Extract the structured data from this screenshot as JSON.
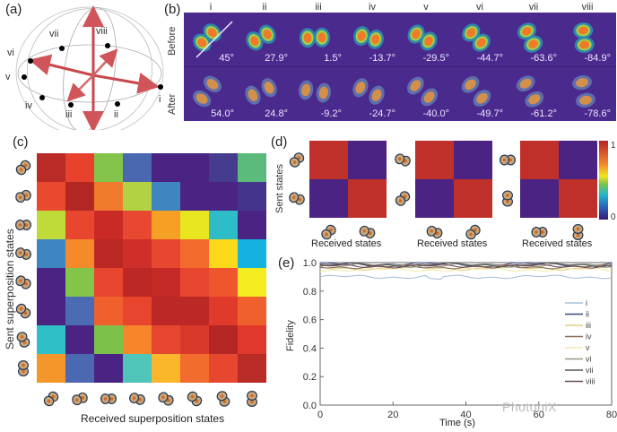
{
  "panels": {
    "a": {
      "label": "(a)",
      "points": [
        "i",
        "ii",
        "iii",
        "iv",
        "v",
        "vi",
        "vii",
        "viii"
      ]
    },
    "b": {
      "label": "(b)",
      "row_labels": [
        "Before",
        "After"
      ],
      "columns": [
        "i",
        "ii",
        "iii",
        "iv",
        "v",
        "vi",
        "vii",
        "viii"
      ],
      "before_angles": [
        "45°",
        "27.9°",
        "1.5°",
        "-13.7°",
        "-29.5°",
        "-44.7°",
        "-63.6°",
        "-84.9°"
      ],
      "after_angles": [
        "54.0°",
        "24.8°",
        "-9.2°",
        "-24.7°",
        "-40.0°",
        "-49.7°",
        "-61.2°",
        "-78.6°"
      ]
    },
    "c": {
      "label": "(c)"
    },
    "d": {
      "label": "(d)"
    },
    "e": {
      "label": "(e)"
    }
  },
  "watermark": "PhotoniX",
  "chart_data": [
    {
      "type": "heatmap",
      "id": "c",
      "title": "",
      "xlabel": "Received superposition states",
      "ylabel": "Sent superposition states",
      "rows": 8,
      "cols": 8,
      "colors": [
        [
          "#b82b26",
          "#e8422f",
          "#84c44a",
          "#4a68b0",
          "#4b2382",
          "#4b2382",
          "#463c8e",
          "#5cba7c"
        ],
        [
          "#e8492f",
          "#b22623",
          "#f07b2c",
          "#b3d243",
          "#3f86c1",
          "#4b2382",
          "#4b2382",
          "#45348c"
        ],
        [
          "#bedb3a",
          "#e8462f",
          "#c92a26",
          "#e8482f",
          "#f59f25",
          "#e8e620",
          "#2dbcc8",
          "#4b2382"
        ],
        [
          "#3d86c2",
          "#f58a2a",
          "#bb2825",
          "#cf2f28",
          "#e8472f",
          "#f26a2c",
          "#fbd81a",
          "#14b3df"
        ],
        [
          "#4b2382",
          "#83c548",
          "#e8452f",
          "#bb2825",
          "#c52a26",
          "#e8452f",
          "#f0562d",
          "#f4ec21"
        ],
        [
          "#4b2382",
          "#4b6cb3",
          "#f0602d",
          "#e8452f",
          "#bb2825",
          "#bb2825",
          "#e03a2b",
          "#f0602d"
        ],
        [
          "#2fbfc6",
          "#4b2382",
          "#7cc24a",
          "#f6852b",
          "#e8472f",
          "#d8392a",
          "#b42624",
          "#e0382b"
        ],
        [
          "#f4962a",
          "#4b68b0",
          "#4b2382",
          "#4fc6b9",
          "#fbb62b",
          "#f26c2d",
          "#e8472f",
          "#b92b26"
        ]
      ],
      "colorbar": {
        "min": 0,
        "max": 1,
        "min_label": "0",
        "max_label": "1"
      }
    },
    {
      "type": "heatmap",
      "id": "d",
      "ylabel": "Sent states",
      "xlabel": "Received states",
      "matrices": [
        [
          [
            1,
            0
          ],
          [
            0,
            1
          ]
        ],
        [
          [
            1,
            0
          ],
          [
            0,
            1
          ]
        ],
        [
          [
            1,
            0
          ],
          [
            0,
            1
          ]
        ]
      ],
      "xlabels": [
        "Received states",
        "Received states",
        "Received states"
      ],
      "colorbar": {
        "min": 0,
        "max": 1,
        "min_label": "0",
        "max_label": "1"
      }
    },
    {
      "type": "line",
      "id": "e",
      "xlabel": "Time (s)",
      "ylabel": "Fidelity",
      "xlim": [
        0,
        80
      ],
      "ylim": [
        0.0,
        1.0
      ],
      "xticks": [
        "0",
        "20",
        "40",
        "60",
        "80"
      ],
      "yticks": [
        "0.0",
        "0.2",
        "0.4",
        "0.6",
        "0.8",
        "1.0"
      ],
      "legend_position": "right",
      "series": [
        {
          "name": "i",
          "color": "#a9c3dc",
          "mean": 0.9
        },
        {
          "name": "ii",
          "color": "#3d4a7a",
          "mean": 0.99
        },
        {
          "name": "iii",
          "color": "#e3cf8a",
          "mean": 0.96
        },
        {
          "name": "iv",
          "color": "#8a6a4e",
          "mean": 0.97
        },
        {
          "name": "v",
          "color": "#f2ecb0",
          "mean": 0.95
        },
        {
          "name": "vi",
          "color": "#8f9a82",
          "mean": 0.98
        },
        {
          "name": "vii",
          "color": "#555555",
          "mean": 0.985
        },
        {
          "name": "viii",
          "color": "#6b4a5c",
          "mean": 0.975
        }
      ]
    }
  ]
}
